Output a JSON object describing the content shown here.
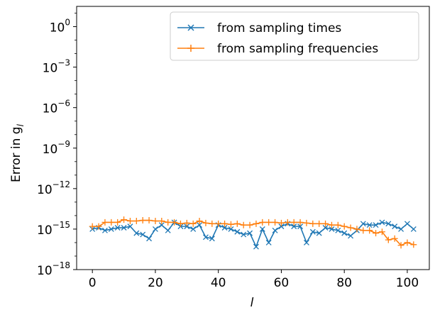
{
  "chart_data": {
    "type": "line",
    "xlabel": "l",
    "ylabel": "Error in g",
    "ylabel_subscript": "l",
    "xlim": [
      -5,
      107
    ],
    "ylim_log10": [
      -18,
      1.5
    ],
    "yscale": "log",
    "x_ticks": [
      0,
      20,
      40,
      60,
      80,
      100
    ],
    "y_ticks": [
      {
        "exp": 0,
        "base": "10",
        "sup": "0"
      },
      {
        "exp": -3,
        "base": "10",
        "sup": "−3"
      },
      {
        "exp": -6,
        "base": "10",
        "sup": "−6"
      },
      {
        "exp": -9,
        "base": "10",
        "sup": "−9"
      },
      {
        "exp": -12,
        "base": "10",
        "sup": "−12"
      },
      {
        "exp": -15,
        "base": "10",
        "sup": "−15"
      },
      {
        "exp": -18,
        "base": "10",
        "sup": "−18"
      }
    ],
    "legend_position": "top-right",
    "series": [
      {
        "name": "from sampling times",
        "color": "#1f77b4",
        "marker": "x",
        "x": [
          0,
          2,
          4,
          6,
          8,
          10,
          12,
          14,
          16,
          18,
          20,
          22,
          24,
          26,
          28,
          30,
          32,
          34,
          36,
          38,
          40,
          42,
          44,
          46,
          48,
          50,
          52,
          54,
          56,
          58,
          60,
          62,
          64,
          66,
          68,
          70,
          72,
          74,
          76,
          78,
          80,
          82,
          84,
          86,
          88,
          90,
          92,
          94,
          96,
          98,
          100,
          102
        ],
        "log10_y": [
          -15.0,
          -14.9,
          -15.1,
          -15.0,
          -14.9,
          -14.9,
          -14.8,
          -15.3,
          -15.4,
          -15.7,
          -15.0,
          -14.7,
          -15.1,
          -14.5,
          -14.8,
          -14.8,
          -15.0,
          -14.7,
          -15.6,
          -15.7,
          -14.7,
          -14.9,
          -15.0,
          -15.2,
          -15.4,
          -15.3,
          -16.3,
          -15.0,
          -16.0,
          -15.1,
          -14.8,
          -14.6,
          -14.8,
          -14.8,
          -16.0,
          -15.2,
          -15.3,
          -14.9,
          -15.0,
          -15.1,
          -15.3,
          -15.5,
          -15.1,
          -14.6,
          -14.7,
          -14.7,
          -14.5,
          -14.6,
          -14.8,
          -15.0,
          -14.6,
          -15.0
        ]
      },
      {
        "name": "from sampling frequencies",
        "color": "#ff7f0e",
        "marker": "+",
        "x": [
          0,
          2,
          4,
          6,
          8,
          10,
          12,
          14,
          16,
          18,
          20,
          22,
          24,
          26,
          28,
          30,
          32,
          34,
          36,
          38,
          40,
          42,
          44,
          46,
          48,
          50,
          52,
          54,
          56,
          58,
          60,
          62,
          64,
          66,
          68,
          70,
          72,
          74,
          76,
          78,
          80,
          82,
          84,
          86,
          88,
          90,
          92,
          94,
          96,
          98,
          100,
          102
        ],
        "log10_y": [
          -14.8,
          -14.8,
          -14.5,
          -14.5,
          -14.5,
          -14.3,
          -14.4,
          -14.4,
          -14.35,
          -14.35,
          -14.4,
          -14.4,
          -14.5,
          -14.5,
          -14.6,
          -14.55,
          -14.6,
          -14.4,
          -14.55,
          -14.6,
          -14.6,
          -14.6,
          -14.65,
          -14.6,
          -14.7,
          -14.7,
          -14.6,
          -14.5,
          -14.5,
          -14.5,
          -14.55,
          -14.5,
          -14.5,
          -14.5,
          -14.55,
          -14.6,
          -14.6,
          -14.6,
          -14.7,
          -14.7,
          -14.8,
          -14.9,
          -15.0,
          -15.1,
          -15.1,
          -15.3,
          -15.2,
          -15.8,
          -15.7,
          -16.2,
          -16.0,
          -16.15
        ]
      }
    ]
  }
}
